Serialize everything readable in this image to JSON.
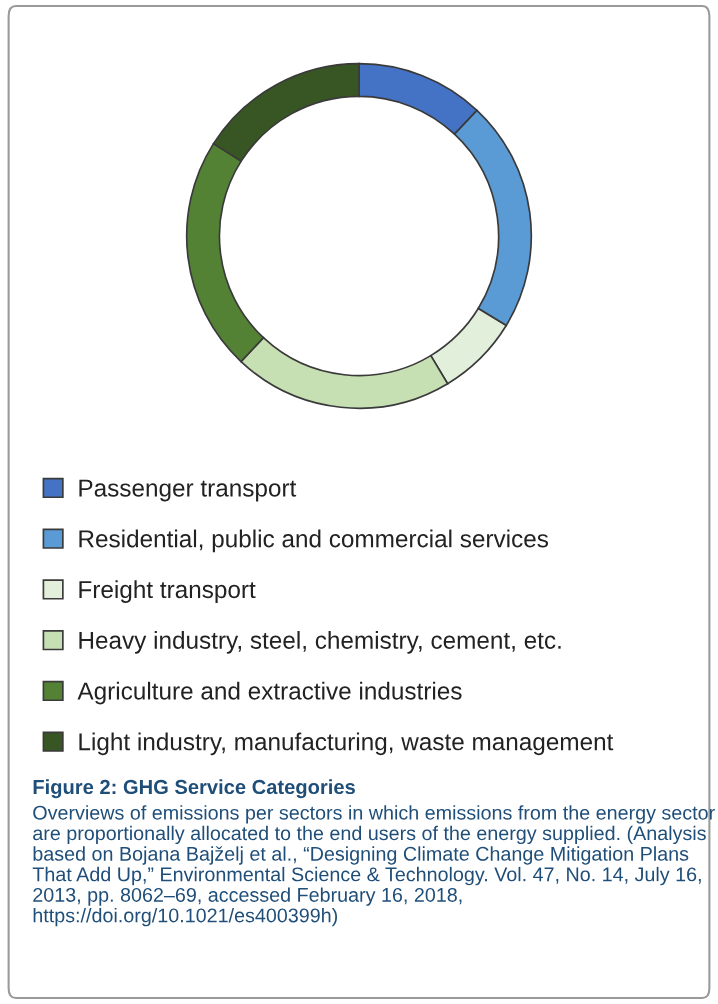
{
  "chart_data": {
    "type": "donut",
    "categories": [
      "Passenger transport",
      "Residential, public and commercial services",
      "Freight transport",
      "Heavy industry, steel, chemistry, cement, etc.",
      "Agriculture and extractive industries",
      "Light industry, manufacturing, waste management"
    ],
    "values": [
      12,
      21.7,
      7.7,
      20.6,
      22,
      16
    ],
    "colors": [
      "#4472c4",
      "#5b9bd5",
      "#e2efda",
      "#c6e0b4",
      "#548235",
      "#375623"
    ],
    "legend": "bottom",
    "title": "Figure 2: GHG Service Categories",
    "annotations": [
      "Overviews of emissions per sectors in which emissions from the energy sector are proportionally allocated to the end users of the energy supplied. (Analysis based on Bojana Bajželj et al., “Designing Climate Change Mitigation Plans That Add Up,” Environmental Science & Technology. Vol. 47, No. 14, July 16, 2013, pp. 8062–69, accessed February 16, 2018, https://doi.org/10.1021/es400399h)"
    ]
  }
}
